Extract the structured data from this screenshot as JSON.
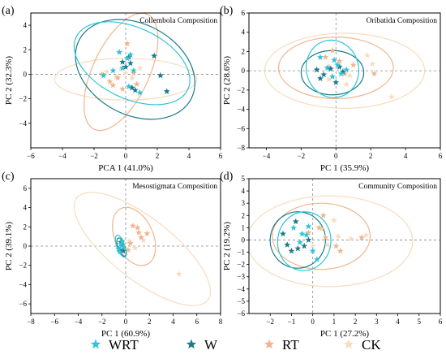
{
  "colors": {
    "WRT": "#2ec4d6",
    "W": "#1a7a8a",
    "RT": "#f0b58f",
    "CK": "#f8dcbf"
  },
  "legend": {
    "items": [
      {
        "name": "WRT",
        "symbol": "star",
        "color": "#2ec4d6"
      },
      {
        "name": "W",
        "symbol": "star",
        "color": "#1a7a8a"
      },
      {
        "name": "RT",
        "symbol": "star",
        "color": "#f0b58f"
      },
      {
        "name": "CK",
        "symbol": "star",
        "color": "#f8dcbf"
      }
    ],
    "placement": "bottom"
  },
  "chart_data": [
    {
      "type": "scatter",
      "panel_label": "(a)",
      "title": "Collembola Composition",
      "xlabel": "PCA 1 (41.0%)",
      "ylabel": "PC 2 (32.3%)",
      "xlim": [
        -6,
        6
      ],
      "ylim": [
        -6,
        5
      ],
      "xticks": [
        -6,
        -4,
        -2,
        0,
        2,
        4,
        6
      ],
      "yticks": [
        -4,
        -2,
        0,
        2,
        4
      ],
      "reference_lines": {
        "x": 0,
        "y": 0
      },
      "series": [
        {
          "name": "WRT",
          "points": [
            [
              -1.4,
              -0.1
            ],
            [
              -0.8,
              0.3
            ],
            [
              -0.4,
              1.8
            ],
            [
              -0.2,
              0.5
            ],
            [
              0.1,
              1.3
            ],
            [
              0.3,
              1.6
            ],
            [
              0.5,
              0.3
            ],
            [
              0.9,
              -1.5
            ],
            [
              0.2,
              -1.0
            ]
          ],
          "ellipse": {
            "cx": 0.4,
            "cy": 0.9,
            "rx": 3.9,
            "ry": 2.9,
            "angle": -25
          }
        },
        {
          "name": "W",
          "points": [
            [
              -0.2,
              1.0
            ],
            [
              0.0,
              0.6
            ],
            [
              0.2,
              1.4
            ],
            [
              0.4,
              -1.1
            ],
            [
              0.6,
              -1.3
            ],
            [
              1.8,
              1.5
            ],
            [
              2.2,
              -0.1
            ],
            [
              2.6,
              -1.4
            ],
            [
              0.3,
              0.9
            ]
          ],
          "ellipse": {
            "cx": 0.6,
            "cy": 0.4,
            "rx": 4.0,
            "ry": 3.7,
            "angle": -28
          }
        },
        {
          "name": "RT",
          "points": [
            [
              -1.5,
              0.0
            ],
            [
              -1.0,
              -0.6
            ],
            [
              -0.5,
              -0.3
            ],
            [
              -0.2,
              -1.2
            ],
            [
              0.1,
              2.5
            ],
            [
              0.5,
              0.1
            ],
            [
              0.7,
              -0.8
            ],
            [
              -0.8,
              -0.9
            ]
          ],
          "ellipse": {
            "cx": -0.3,
            "cy": 0.2,
            "rx": 4.0,
            "ry": 2.3,
            "angle": 65
          }
        },
        {
          "name": "CK",
          "points": [
            [
              -1.2,
              0.2
            ],
            [
              -0.6,
              -0.2
            ],
            [
              0.0,
              0.1
            ],
            [
              0.4,
              -0.3
            ],
            [
              0.9,
              0.5
            ],
            [
              -0.3,
              0.4
            ]
          ],
          "ellipse": {
            "cx": 0.0,
            "cy": -0.4,
            "rx": 4.5,
            "ry": 1.7,
            "angle": 0
          }
        }
      ]
    },
    {
      "type": "scatter",
      "panel_label": "(b)",
      "title": "Oribatida Composition",
      "xlabel": "PC 1 (35.9%)",
      "ylabel": "PC 2 (28.6%)",
      "xlim": [
        -5,
        6
      ],
      "ylim": [
        -8,
        6
      ],
      "xticks": [
        -4,
        -2,
        0,
        2,
        4,
        6
      ],
      "yticks": [
        -8,
        -6,
        -4,
        -2,
        0,
        2,
        4,
        6
      ],
      "reference_lines": {
        "x": 0,
        "y": 0
      },
      "series": [
        {
          "name": "WRT",
          "points": [
            [
              -0.9,
              1.4
            ],
            [
              -0.5,
              0.3
            ],
            [
              -0.2,
              -0.6
            ],
            [
              0.1,
              0.6
            ],
            [
              0.3,
              -0.3
            ],
            [
              0.6,
              0.1
            ],
            [
              -0.1,
              1.1
            ]
          ],
          "ellipse": {
            "cx": -0.2,
            "cy": 0.2,
            "rx": 1.5,
            "ry": 3.0,
            "angle": 15
          }
        },
        {
          "name": "W",
          "points": [
            [
              -1.1,
              0.1
            ],
            [
              -0.7,
              -0.4
            ],
            [
              -0.3,
              0.2
            ],
            [
              0.0,
              -1.2
            ],
            [
              0.4,
              -0.1
            ],
            [
              -0.9,
              -0.8
            ],
            [
              0.2,
              0.4
            ]
          ],
          "ellipse": {
            "cx": -0.2,
            "cy": -0.2,
            "rx": 1.8,
            "ry": 2.3,
            "angle": 0
          }
        },
        {
          "name": "RT",
          "points": [
            [
              -0.6,
              1.4
            ],
            [
              -0.2,
              2.1
            ],
            [
              0.2,
              1.0
            ],
            [
              0.5,
              -0.3
            ],
            [
              1.0,
              0.6
            ],
            [
              2.2,
              -0.3
            ],
            [
              -0.4,
              0.4
            ]
          ],
          "ellipse": {
            "cx": 0.0,
            "cy": 0.3,
            "rx": 3.3,
            "ry": 3.2,
            "angle": 0
          }
        },
        {
          "name": "CK",
          "points": [
            [
              -0.4,
              -0.9
            ],
            [
              0.2,
              0.5
            ],
            [
              0.6,
              -1.4
            ],
            [
              1.8,
              1.6
            ],
            [
              2.1,
              0.7
            ],
            [
              3.2,
              -2.7
            ],
            [
              0.8,
              -0.5
            ]
          ],
          "ellipse": {
            "cx": 0.5,
            "cy": 0.0,
            "rx": 4.6,
            "ry": 3.9,
            "angle": 0
          }
        }
      ]
    },
    {
      "type": "scatter",
      "panel_label": "(c)",
      "title": "Mesostigmata Composition",
      "xlabel": "PC 1 (60.9%)",
      "ylabel": "PC 2 (39.1%)",
      "xlim": [
        -8,
        8
      ],
      "ylim": [
        -7,
        7
      ],
      "xticks": [
        -8,
        -6,
        -4,
        -2,
        0,
        2,
        4,
        6,
        8
      ],
      "yticks": [
        -6,
        -4,
        -2,
        0,
        2,
        4,
        6
      ],
      "reference_lines": {
        "x": 0,
        "y": 0
      },
      "series": [
        {
          "name": "WRT",
          "points": [
            [
              -0.6,
              -0.3
            ],
            [
              -0.4,
              0.2
            ],
            [
              -0.3,
              0.5
            ],
            [
              -0.5,
              -0.6
            ],
            [
              -0.2,
              -0.1
            ]
          ],
          "ellipse": {
            "cx": -0.4,
            "cy": 0.0,
            "rx": 0.35,
            "ry": 1.2,
            "angle": 20
          }
        },
        {
          "name": "W",
          "points": [
            [
              -0.5,
              -0.4
            ],
            [
              -0.3,
              0.1
            ],
            [
              -0.4,
              0.4
            ],
            [
              -0.2,
              -0.5
            ]
          ],
          "ellipse": {
            "cx": -0.35,
            "cy": -0.1,
            "rx": 0.3,
            "ry": 1.0,
            "angle": 20
          }
        },
        {
          "name": "RT",
          "points": [
            [
              0.6,
              2.1
            ],
            [
              1.0,
              1.9
            ],
            [
              1.3,
              0.9
            ],
            [
              1.8,
              1.3
            ],
            [
              0.4,
              0.3
            ],
            [
              1.1,
              1.4
            ],
            [
              0.2,
              -0.4
            ]
          ],
          "ellipse": {
            "cx": 0.7,
            "cy": 1.0,
            "rx": 1.6,
            "ry": 3.2,
            "angle": 25
          }
        },
        {
          "name": "CK",
          "points": [
            [
              0.3,
              0.5
            ],
            [
              0.8,
              -0.2
            ],
            [
              4.5,
              -2.9
            ],
            [
              1.5,
              0.6
            ],
            [
              -0.1,
              0.2
            ]
          ],
          "ellipse": {
            "cx": 1.4,
            "cy": -0.3,
            "rx": 7.0,
            "ry": 3.2,
            "angle": -38
          }
        }
      ]
    },
    {
      "type": "scatter",
      "panel_label": "(d)",
      "title": "Community Composition",
      "xlabel": "PC 1 (27.2%)",
      "ylabel": "PC 2 (19.2%)",
      "xlim": [
        -3,
        6
      ],
      "ylim": [
        -6,
        5
      ],
      "xticks": [
        -2,
        -1,
        0,
        1,
        2,
        3,
        4,
        5,
        6
      ],
      "yticks": [
        -6,
        -5,
        -4,
        -3,
        -2,
        -1,
        0,
        1,
        2,
        3,
        4,
        5
      ],
      "reference_lines": {
        "x": 0,
        "y": 0
      },
      "series": [
        {
          "name": "WRT",
          "points": [
            [
              -0.9,
              1.0
            ],
            [
              -0.5,
              0.5
            ],
            [
              -0.3,
              0.4
            ],
            [
              0.2,
              -1.6
            ],
            [
              -0.6,
              -0.2
            ],
            [
              0.0,
              -0.9
            ],
            [
              -0.2,
              1.1
            ]
          ],
          "ellipse": {
            "cx": -0.4,
            "cy": -0.1,
            "rx": 1.25,
            "ry": 2.4,
            "angle": -8
          }
        },
        {
          "name": "W",
          "points": [
            [
              -1.4,
              0.5
            ],
            [
              -1.0,
              -0.9
            ],
            [
              -0.7,
              -0.7
            ],
            [
              -0.4,
              -0.5
            ],
            [
              -0.2,
              0.0
            ],
            [
              -1.2,
              -0.4
            ],
            [
              -0.8,
              1.5
            ]
          ],
          "ellipse": {
            "cx": -0.7,
            "cy": 0.0,
            "rx": 1.3,
            "ry": 2.3,
            "angle": -12
          }
        },
        {
          "name": "RT",
          "points": [
            [
              -0.2,
              0.6
            ],
            [
              0.3,
              1.0
            ],
            [
              0.6,
              0.2
            ],
            [
              1.1,
              -0.5
            ],
            [
              1.3,
              -0.9
            ],
            [
              2.3,
              0.2
            ],
            [
              0.5,
              2.0
            ]
          ],
          "ellipse": {
            "cx": 0.4,
            "cy": 0.3,
            "rx": 2.3,
            "ry": 2.7,
            "angle": 0
          }
        },
        {
          "name": "CK",
          "points": [
            [
              0.0,
              -0.5
            ],
            [
              0.7,
              -0.4
            ],
            [
              1.2,
              0.3
            ],
            [
              1.8,
              0.1
            ],
            [
              2.5,
              0.4
            ],
            [
              0.4,
              0.9
            ],
            [
              1.0,
              1.6
            ]
          ],
          "ellipse": {
            "cx": 0.8,
            "cy": -0.1,
            "rx": 3.9,
            "ry": 3.7,
            "angle": 0
          }
        }
      ]
    }
  ]
}
